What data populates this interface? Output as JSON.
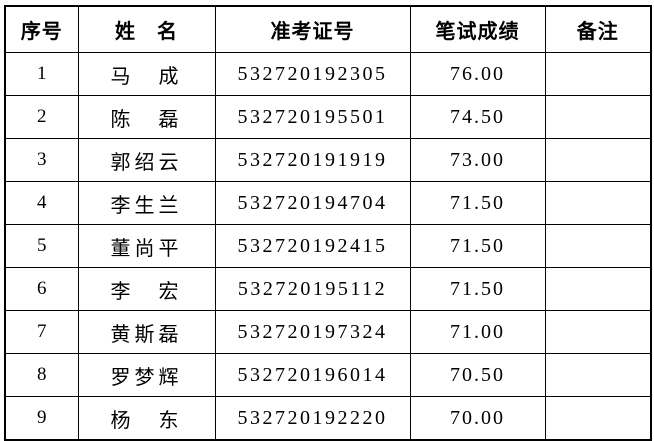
{
  "page": {
    "background_color": "#ffffff",
    "border_color": "#000000",
    "text_color": "#000000"
  },
  "table": {
    "columns": [
      {
        "key": "no",
        "label": "序号"
      },
      {
        "key": "name",
        "label": "姓　名"
      },
      {
        "key": "ticket",
        "label": "准考证号"
      },
      {
        "key": "score",
        "label": "笔试成绩"
      },
      {
        "key": "note",
        "label": "备注"
      }
    ],
    "rows": [
      {
        "no": "1",
        "name": "马　成",
        "ticket": "532720192305",
        "score": "76.00",
        "note": ""
      },
      {
        "no": "2",
        "name": "陈　磊",
        "ticket": "532720195501",
        "score": "74.50",
        "note": ""
      },
      {
        "no": "3",
        "name": "郭绍云",
        "ticket": "532720191919",
        "score": "73.00",
        "note": ""
      },
      {
        "no": "4",
        "name": "李生兰",
        "ticket": "532720194704",
        "score": "71.50",
        "note": ""
      },
      {
        "no": "5",
        "name": "董尚平",
        "ticket": "532720192415",
        "score": "71.50",
        "note": ""
      },
      {
        "no": "6",
        "name": "李　宏",
        "ticket": "532720195112",
        "score": "71.50",
        "note": ""
      },
      {
        "no": "7",
        "name": "黄斯磊",
        "ticket": "532720197324",
        "score": "71.00",
        "note": ""
      },
      {
        "no": "8",
        "name": "罗梦辉",
        "ticket": "532720196014",
        "score": "70.50",
        "note": ""
      },
      {
        "no": "9",
        "name": "杨　东",
        "ticket": "532720192220",
        "score": "70.00",
        "note": ""
      }
    ]
  }
}
